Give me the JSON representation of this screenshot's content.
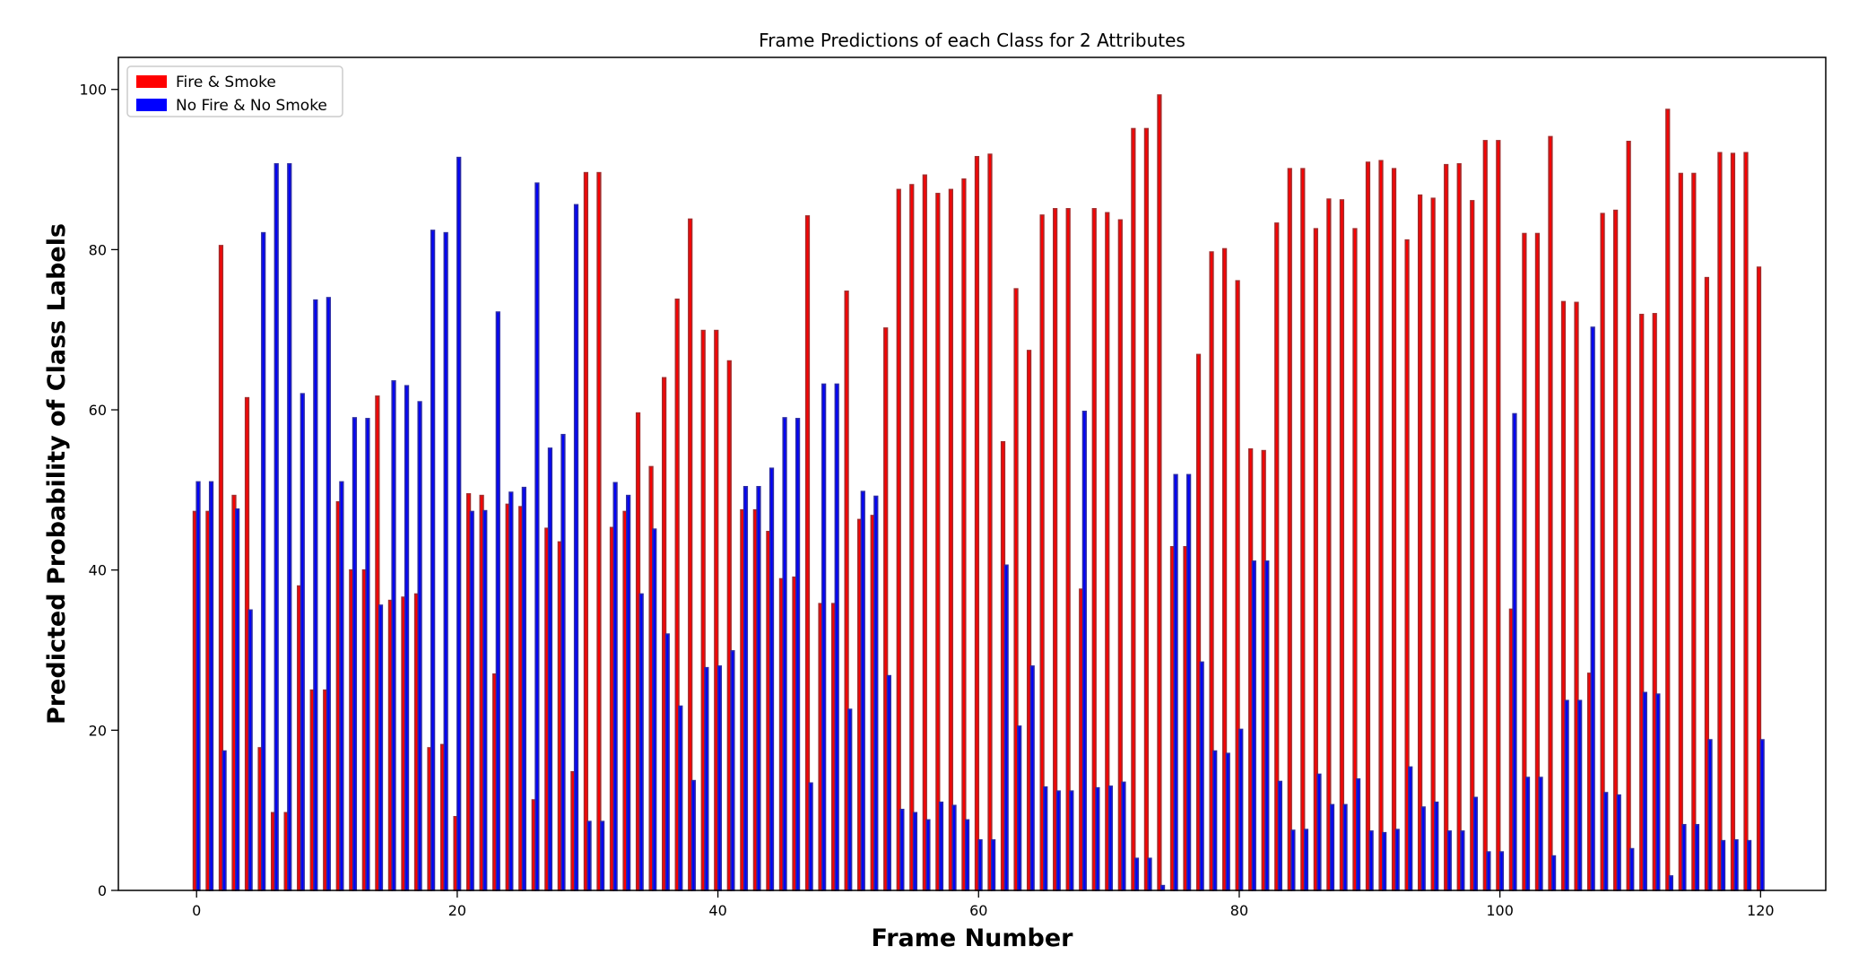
{
  "chart_data": {
    "type": "bar",
    "title": "Frame Predictions of each Class for 2 Attributes",
    "xlabel": "Frame Number",
    "ylabel": "Predicted Probability of Class Labels",
    "xlim": [
      -6,
      125
    ],
    "ylim": [
      0,
      104
    ],
    "xticks": [
      0,
      20,
      40,
      60,
      80,
      100,
      120
    ],
    "yticks": [
      0,
      20,
      40,
      60,
      80,
      100
    ],
    "legend_position": "upper-left",
    "grid": false,
    "series": [
      {
        "name": "Fire & Smoke",
        "color": "#ff0000",
        "edge_color": "#a52a2a",
        "values": [
          47.3,
          47.3,
          80.5,
          49.3,
          61.5,
          17.8,
          9.7,
          9.7,
          38,
          25,
          25,
          48.5,
          40,
          40,
          61.7,
          36.2,
          36.6,
          37,
          17.8,
          18.2,
          9.2,
          49.5,
          49.3,
          27,
          48.2,
          47.9,
          11.3,
          45.2,
          43.5,
          14.8,
          89.6,
          89.6,
          45.3,
          47.3,
          59.6,
          52.9,
          64,
          73.8,
          83.8,
          69.9,
          69.9,
          66.1,
          47.5,
          47.5,
          44.8,
          38.9,
          39.1,
          84.2,
          35.8,
          35.8,
          74.8,
          46.3,
          46.8,
          70.2,
          87.5,
          88.1,
          89.3,
          87,
          87.5,
          88.8,
          91.6,
          91.9,
          56,
          75.1,
          67.4,
          84.3,
          85.1,
          85.1,
          37.6,
          85.1,
          84.6,
          83.7,
          95.1,
          95.1,
          99.3,
          42.9,
          42.9,
          66.9,
          79.7,
          80.1,
          76.1,
          55.1,
          54.9,
          83.3,
          90.1,
          90.1,
          82.6,
          86.3,
          86.2,
          82.6,
          90.9,
          91.1,
          90.1,
          81.2,
          86.8,
          86.4,
          90.6,
          90.7,
          86.1,
          93.6,
          93.6,
          35.1,
          82,
          82,
          94.1,
          73.5,
          73.4,
          27.1,
          84.5,
          84.9,
          93.5,
          71.9,
          72,
          97.5,
          89.5,
          89.5,
          76.5,
          92.1,
          92,
          92.1,
          77.8
        ]
      },
      {
        "name": "No Fire & No Smoke",
        "color": "#0000ff",
        "edge_color": "#2a2aa5",
        "values": [
          51,
          51,
          17.4,
          47.6,
          35,
          82.1,
          90.7,
          90.7,
          62,
          73.7,
          74,
          51,
          59,
          58.9,
          35.6,
          63.6,
          63,
          61,
          82.4,
          82.1,
          91.5,
          47.3,
          47.4,
          72.2,
          49.7,
          50.3,
          88.3,
          55.2,
          56.9,
          85.6,
          8.6,
          8.6,
          50.9,
          49.3,
          37,
          45.1,
          32,
          23,
          13.7,
          27.8,
          28,
          29.9,
          50.4,
          50.4,
          52.7,
          59,
          58.9,
          13.4,
          63.2,
          63.2,
          22.6,
          49.8,
          49.2,
          26.8,
          10.1,
          9.7,
          8.8,
          11,
          10.6,
          8.8,
          6.3,
          6.3,
          40.6,
          20.5,
          28,
          12.9,
          12.4,
          12.4,
          59.8,
          12.8,
          13,
          13.5,
          4,
          4,
          0.6,
          51.9,
          51.9,
          28.5,
          17.4,
          17.1,
          20.1,
          41.1,
          41.1,
          13.6,
          7.5,
          7.6,
          14.5,
          10.7,
          10.7,
          13.9,
          7.4,
          7.2,
          7.6,
          15.4,
          10.4,
          11,
          7.4,
          7.4,
          11.6,
          4.8,
          4.8,
          59.5,
          14.1,
          14.1,
          4.3,
          23.7,
          23.7,
          70.3,
          12.2,
          11.9,
          5.2,
          24.7,
          24.5,
          1.8,
          8.2,
          8.2,
          18.8,
          6.2,
          6.3,
          6.2,
          18.8
        ]
      }
    ]
  }
}
